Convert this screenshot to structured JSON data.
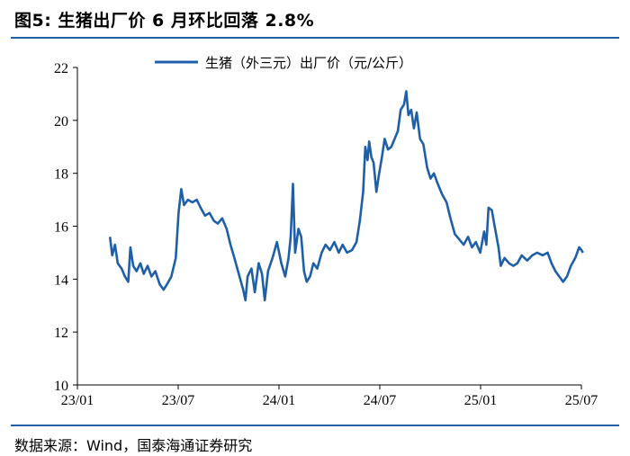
{
  "figure": {
    "title": "图5:  生猪出厂价 6 月环比回落 2.8%",
    "source": "数据来源：Wind，国泰海通证券研究"
  },
  "colors": {
    "line": "#1f5fa8",
    "rule": "#1f5fa8",
    "axis": "#000000"
  },
  "chart_data": {
    "type": "line",
    "title": "",
    "xlabel": "",
    "ylabel": "",
    "ylim": [
      10,
      22
    ],
    "yticks": [
      10,
      12,
      14,
      16,
      18,
      20,
      22
    ],
    "xticks": [
      "23/01",
      "23/07",
      "24/01",
      "24/07",
      "25/01",
      "25/07"
    ],
    "xlim": [
      "2023-01-01",
      "2025-07-01"
    ],
    "grid": false,
    "legend": "top-center",
    "series": [
      {
        "name": "生猪（外三元）出厂价（元/公斤）",
        "points": [
          [
            "2023-03-01",
            15.6
          ],
          [
            "2023-03-05",
            14.9
          ],
          [
            "2023-03-10",
            15.3
          ],
          [
            "2023-03-15",
            14.6
          ],
          [
            "2023-03-22",
            14.4
          ],
          [
            "2023-03-28",
            14.1
          ],
          [
            "2023-04-03",
            13.9
          ],
          [
            "2023-04-07",
            15.2
          ],
          [
            "2023-04-12",
            14.5
          ],
          [
            "2023-04-18",
            14.3
          ],
          [
            "2023-04-25",
            14.6
          ],
          [
            "2023-05-01",
            14.2
          ],
          [
            "2023-05-08",
            14.5
          ],
          [
            "2023-05-15",
            14.1
          ],
          [
            "2023-05-22",
            14.3
          ],
          [
            "2023-05-30",
            13.8
          ],
          [
            "2023-06-06",
            13.6
          ],
          [
            "2023-06-12",
            13.8
          ],
          [
            "2023-06-20",
            14.1
          ],
          [
            "2023-06-28",
            14.8
          ],
          [
            "2023-07-03",
            16.5
          ],
          [
            "2023-07-08",
            17.4
          ],
          [
            "2023-07-13",
            16.8
          ],
          [
            "2023-07-20",
            17.0
          ],
          [
            "2023-07-28",
            16.9
          ],
          [
            "2023-08-05",
            17.0
          ],
          [
            "2023-08-12",
            16.7
          ],
          [
            "2023-08-20",
            16.4
          ],
          [
            "2023-08-28",
            16.5
          ],
          [
            "2023-09-05",
            16.2
          ],
          [
            "2023-09-12",
            16.1
          ],
          [
            "2023-09-20",
            16.3
          ],
          [
            "2023-09-28",
            15.9
          ],
          [
            "2023-10-05",
            15.3
          ],
          [
            "2023-10-12",
            14.8
          ],
          [
            "2023-10-20",
            14.2
          ],
          [
            "2023-10-28",
            13.6
          ],
          [
            "2023-11-01",
            13.2
          ],
          [
            "2023-11-05",
            14.1
          ],
          [
            "2023-11-12",
            14.4
          ],
          [
            "2023-11-18",
            13.5
          ],
          [
            "2023-11-25",
            14.6
          ],
          [
            "2023-12-01",
            14.2
          ],
          [
            "2023-12-06",
            13.2
          ],
          [
            "2023-12-12",
            14.3
          ],
          [
            "2023-12-20",
            14.8
          ],
          [
            "2023-12-28",
            15.4
          ],
          [
            "2024-01-05",
            14.6
          ],
          [
            "2024-01-12",
            14.1
          ],
          [
            "2024-01-18",
            14.8
          ],
          [
            "2024-01-22",
            15.6
          ],
          [
            "2024-01-26",
            17.6
          ],
          [
            "2024-01-30",
            15.0
          ],
          [
            "2024-02-05",
            15.9
          ],
          [
            "2024-02-10",
            15.6
          ],
          [
            "2024-02-15",
            14.3
          ],
          [
            "2024-02-20",
            13.9
          ],
          [
            "2024-02-26",
            14.1
          ],
          [
            "2024-03-03",
            14.6
          ],
          [
            "2024-03-10",
            14.4
          ],
          [
            "2024-03-18",
            15.0
          ],
          [
            "2024-03-25",
            15.3
          ],
          [
            "2024-04-02",
            15.1
          ],
          [
            "2024-04-10",
            15.4
          ],
          [
            "2024-04-18",
            15.0
          ],
          [
            "2024-04-25",
            15.3
          ],
          [
            "2024-05-03",
            15.0
          ],
          [
            "2024-05-12",
            15.1
          ],
          [
            "2024-05-20",
            15.4
          ],
          [
            "2024-05-26",
            16.2
          ],
          [
            "2024-06-01",
            17.3
          ],
          [
            "2024-06-05",
            19.0
          ],
          [
            "2024-06-09",
            18.5
          ],
          [
            "2024-06-12",
            19.2
          ],
          [
            "2024-06-16",
            18.6
          ],
          [
            "2024-06-20",
            18.4
          ],
          [
            "2024-06-25",
            17.3
          ],
          [
            "2024-06-30",
            18.0
          ],
          [
            "2024-07-05",
            18.6
          ],
          [
            "2024-07-10",
            19.3
          ],
          [
            "2024-07-16",
            18.9
          ],
          [
            "2024-07-22",
            19.0
          ],
          [
            "2024-07-28",
            19.3
          ],
          [
            "2024-08-03",
            19.6
          ],
          [
            "2024-08-08",
            20.4
          ],
          [
            "2024-08-14",
            20.6
          ],
          [
            "2024-08-18",
            21.1
          ],
          [
            "2024-08-22",
            20.2
          ],
          [
            "2024-08-27",
            20.4
          ],
          [
            "2024-09-01",
            19.7
          ],
          [
            "2024-09-06",
            20.3
          ],
          [
            "2024-09-12",
            19.3
          ],
          [
            "2024-09-18",
            19.1
          ],
          [
            "2024-09-25",
            18.2
          ],
          [
            "2024-10-01",
            17.8
          ],
          [
            "2024-10-07",
            18.0
          ],
          [
            "2024-10-14",
            17.6
          ],
          [
            "2024-10-22",
            17.2
          ],
          [
            "2024-10-30",
            16.9
          ],
          [
            "2024-11-06",
            16.3
          ],
          [
            "2024-11-14",
            15.7
          ],
          [
            "2024-11-22",
            15.5
          ],
          [
            "2024-11-30",
            15.3
          ],
          [
            "2024-12-08",
            15.6
          ],
          [
            "2024-12-15",
            15.2
          ],
          [
            "2024-12-22",
            15.4
          ],
          [
            "2024-12-30",
            15.0
          ],
          [
            "2025-01-06",
            15.8
          ],
          [
            "2025-01-10",
            15.3
          ],
          [
            "2025-01-14",
            16.7
          ],
          [
            "2025-01-20",
            16.6
          ],
          [
            "2025-01-25",
            16.0
          ],
          [
            "2025-02-01",
            15.2
          ],
          [
            "2025-02-05",
            14.5
          ],
          [
            "2025-02-12",
            14.8
          ],
          [
            "2025-02-20",
            14.6
          ],
          [
            "2025-02-28",
            14.5
          ],
          [
            "2025-03-07",
            14.6
          ],
          [
            "2025-03-15",
            14.9
          ],
          [
            "2025-03-25",
            14.7
          ],
          [
            "2025-04-03",
            14.9
          ],
          [
            "2025-04-12",
            15.0
          ],
          [
            "2025-04-22",
            14.9
          ],
          [
            "2025-05-01",
            15.0
          ],
          [
            "2025-05-08",
            14.6
          ],
          [
            "2025-05-15",
            14.3
          ],
          [
            "2025-05-22",
            14.1
          ],
          [
            "2025-05-29",
            13.9
          ],
          [
            "2025-06-05",
            14.1
          ],
          [
            "2025-06-12",
            14.5
          ],
          [
            "2025-06-20",
            14.8
          ],
          [
            "2025-06-27",
            15.2
          ],
          [
            "2025-07-01",
            15.1
          ],
          [
            "2025-07-04",
            15.0
          ]
        ]
      }
    ]
  }
}
